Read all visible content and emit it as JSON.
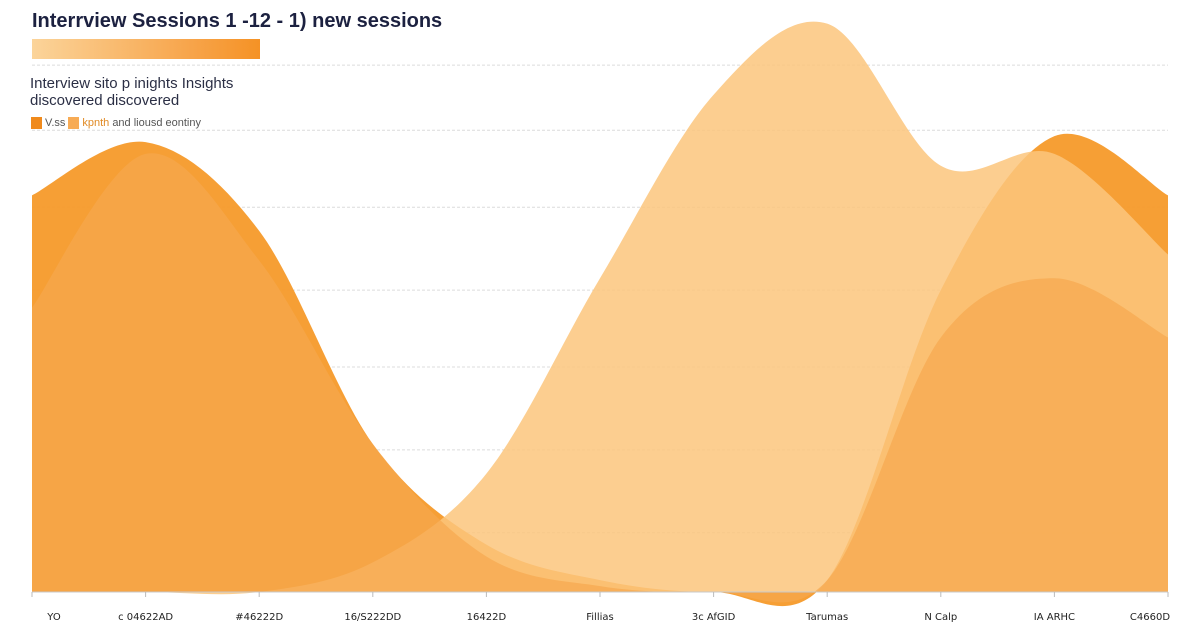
{
  "header": {
    "title": "Interrview Sessions 1 -12 - 1) new sessions",
    "subtitle": "Interview  sito  p inights  Insights discovered discovered"
  },
  "legend": {
    "items": [
      {
        "label": "V.ss",
        "color": "#f08a1c"
      },
      {
        "label": "kpnth",
        "color": "#f7ab55"
      }
    ],
    "trailing_text": "and liousd eontiny"
  },
  "colors": {
    "series_a": "#f59a2a",
    "series_b": "#fbc57c",
    "series_c": "#f6a84e",
    "grid": "#dcdcdc"
  },
  "chart_data": {
    "type": "area",
    "title": "Interrview Sessions 1 -12 - 1) new sessions",
    "categories": [
      "YO",
      "c 04622AD",
      "#46222D",
      "16/S222DD",
      "16422D",
      "Fillias",
      "3c AfGID",
      "Tarumas",
      "N Calp",
      "IA ARHC",
      "C4660D"
    ],
    "grid": true,
    "legend_position": "top-left",
    "ylim": [
      0,
      100
    ],
    "series": [
      {
        "values": [
          67,
          76,
          61,
          25,
          8,
          2,
          0,
          2,
          51,
          77,
          67
        ]
      },
      {
        "values": [
          0,
          0,
          0,
          5,
          20,
          53,
          84,
          96,
          72,
          74,
          57
        ]
      },
      {
        "values": [
          48,
          74,
          56,
          25,
          6,
          1,
          0,
          2,
          43,
          53,
          43
        ]
      }
    ]
  }
}
